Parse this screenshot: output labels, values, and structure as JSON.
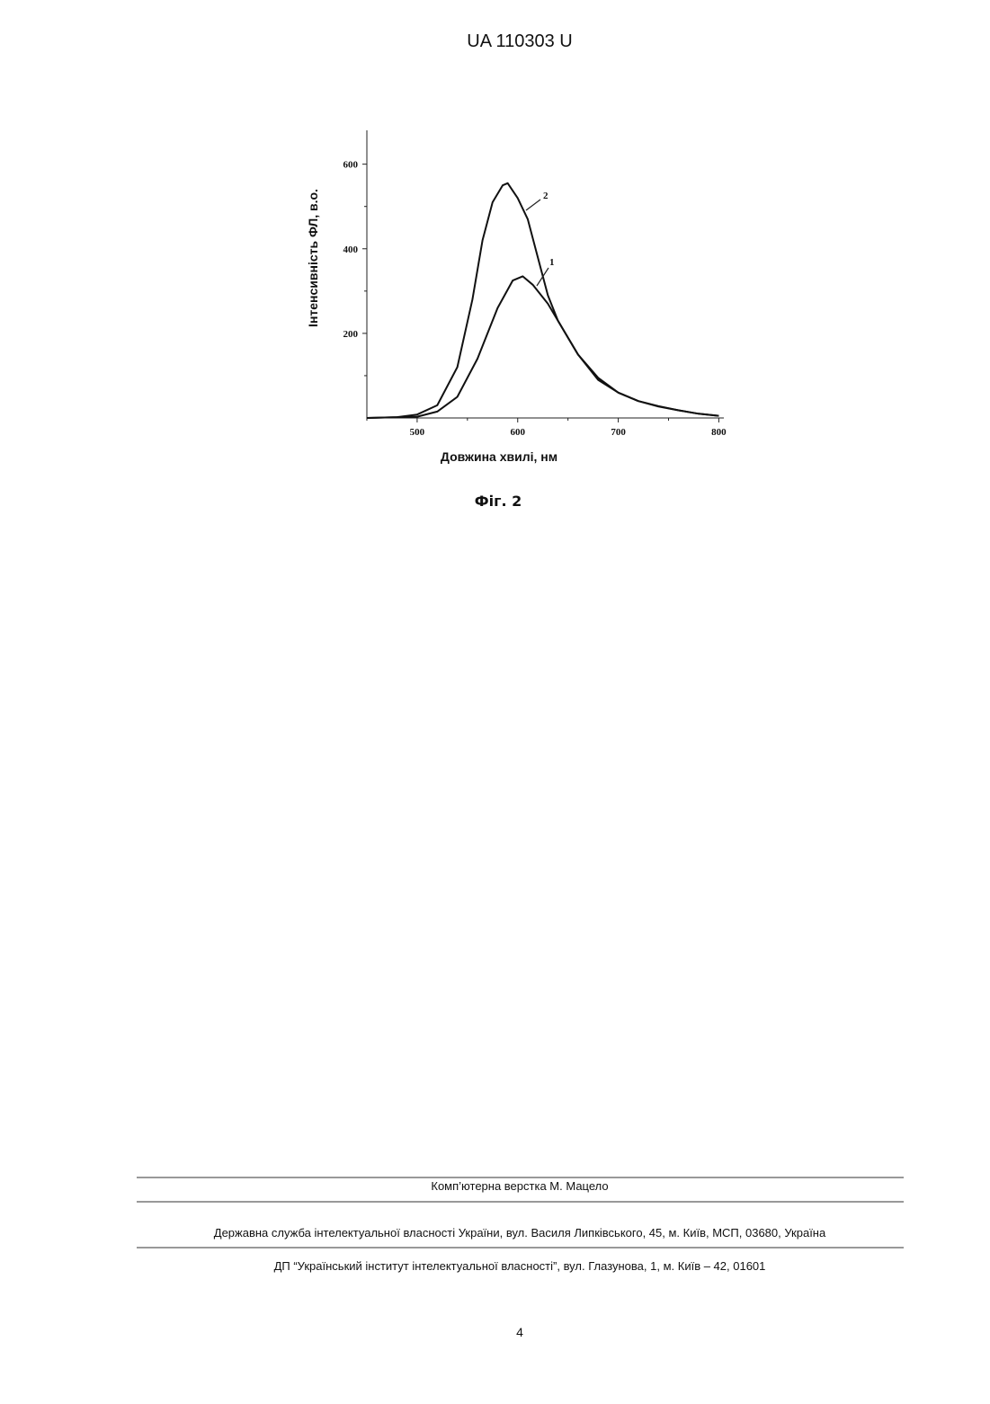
{
  "header": {
    "number": "UA   110303   U"
  },
  "chart_data": {
    "type": "line",
    "y_label": "Інтенсивність ФЛ, в.о.",
    "x_label": "Довжина хвилі, нм",
    "xlim": [
      450,
      805
    ],
    "xticks": [
      500,
      600,
      700,
      800
    ],
    "xminor": [
      450,
      550,
      650,
      750
    ],
    "ylim": [
      0,
      680
    ],
    "yticks": [
      200,
      400,
      600
    ],
    "yminor": [
      100,
      300,
      500
    ],
    "annotations": [
      "1",
      "2"
    ],
    "series": [
      {
        "name": "1",
        "color": "#111111",
        "x": [
          450,
          500,
          520,
          540,
          560,
          580,
          595,
          605,
          615,
          630,
          645,
          660,
          680,
          700,
          720,
          740,
          760,
          780,
          800
        ],
        "values": [
          0,
          3,
          15,
          50,
          140,
          260,
          325,
          335,
          315,
          270,
          210,
          150,
          95,
          60,
          40,
          27,
          18,
          10,
          5
        ]
      },
      {
        "name": "2",
        "color": "#111111",
        "x": [
          450,
          480,
          500,
          520,
          540,
          555,
          565,
          575,
          585,
          590,
          600,
          610,
          620,
          630,
          640,
          660,
          680,
          700,
          720,
          740,
          760,
          780,
          800
        ],
        "values": [
          0,
          2,
          8,
          30,
          120,
          280,
          420,
          510,
          550,
          555,
          520,
          470,
          380,
          290,
          230,
          150,
          90,
          60,
          40,
          28,
          18,
          10,
          5
        ]
      }
    ]
  },
  "caption": "Фіг. 2",
  "footer": {
    "layout": "Комп’ютерна верстка М. Мацело",
    "office": "Державна служба інтелектуальної власності України, вул. Василя Липківського, 45, м. Київ, МСП, 03680, Україна",
    "institute": "ДП “Український інститут інтелектуальної власності”, вул. Глазунова, 1, м. Київ – 42, 01601",
    "page": "4"
  }
}
